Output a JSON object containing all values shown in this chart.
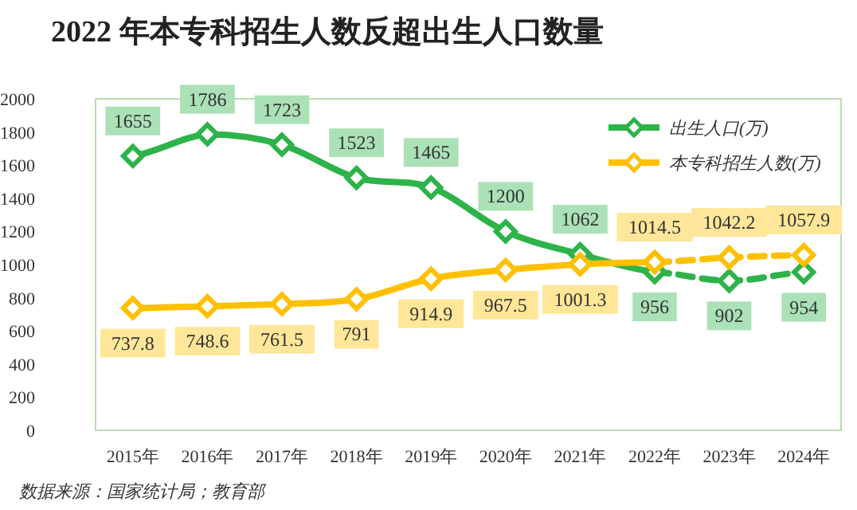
{
  "chart_data": {
    "type": "line",
    "title": "2022 年本专科招生人数反超出生人口数量",
    "categories": [
      "2015年",
      "2016年",
      "2017年",
      "2018年",
      "2019年",
      "2020年",
      "2021年",
      "2022年",
      "2023年",
      "2024年"
    ],
    "ylim": [
      0,
      2000
    ],
    "yticks": [
      0,
      200,
      400,
      600,
      800,
      1000,
      1200,
      1400,
      1600,
      1800,
      2000
    ],
    "grid": false,
    "legend": "top right",
    "marker": "diamond",
    "series": [
      {
        "name": "出生人口(万)",
        "color": "#2db34a",
        "line_style": "solid",
        "values": [
          1655,
          1786,
          1723,
          1523,
          1465,
          1200,
          1062,
          956,
          null,
          null
        ],
        "value_labels": [
          "1655",
          "1786",
          "1723",
          "1523",
          "1465",
          "1200",
          "1062",
          "956",
          null,
          null
        ]
      },
      {
        "color": "#2db34a",
        "line_style": "dashed",
        "values": [
          null,
          null,
          null,
          null,
          null,
          null,
          null,
          956,
          902,
          954
        ],
        "value_labels": [
          null,
          null,
          null,
          null,
          null,
          null,
          null,
          null,
          "902",
          "954"
        ]
      },
      {
        "name": "本专科招生人数(万)",
        "color": "#ffc000",
        "line_style": "solid",
        "values": [
          737.8,
          748.6,
          761.5,
          791,
          914.9,
          967.5,
          1001.3,
          1014.5,
          null,
          null
        ],
        "value_labels": [
          "737.8",
          "748.6",
          "761.5",
          "791",
          "914.9",
          "967.5",
          "1001.3",
          "1014.5",
          null,
          null
        ]
      },
      {
        "color": "#ffc000",
        "line_style": "dashed",
        "values": [
          null,
          null,
          null,
          null,
          null,
          null,
          null,
          1014.5,
          1042.2,
          1057.9
        ],
        "value_labels": [
          null,
          null,
          null,
          null,
          null,
          null,
          null,
          null,
          "1042.2",
          "1057.9"
        ]
      }
    ],
    "annotations": [
      "数据来源：国家统计局；教育部"
    ]
  }
}
